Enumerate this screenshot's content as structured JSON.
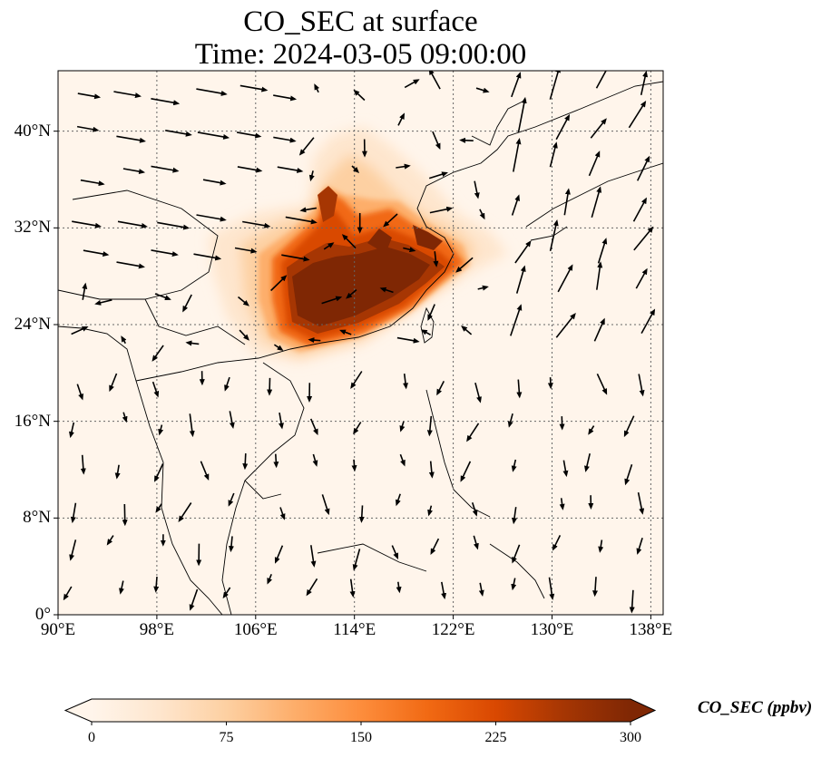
{
  "title_line1": "CO_SEC at surface",
  "title_line2": "Time: 2024-03-05 09:00:00",
  "map": {
    "lon_range": [
      90,
      139
    ],
    "lat_range": [
      0,
      45
    ],
    "lon_ticks": [
      {
        "value": 90,
        "label": "90°E"
      },
      {
        "value": 98,
        "label": "98°E"
      },
      {
        "value": 106,
        "label": "106°E"
      },
      {
        "value": 114,
        "label": "114°E"
      },
      {
        "value": 122,
        "label": "122°E"
      },
      {
        "value": 130,
        "label": "130°E"
      },
      {
        "value": 138,
        "label": "138°E"
      }
    ],
    "lat_ticks": [
      {
        "value": 0,
        "label": "0°"
      },
      {
        "value": 8,
        "label": "8°N"
      },
      {
        "value": 16,
        "label": "16°N"
      },
      {
        "value": 24,
        "label": "24°N"
      },
      {
        "value": 32,
        "label": "32°N"
      },
      {
        "value": 40,
        "label": "40°N"
      }
    ],
    "gridlines": true,
    "background_color": "#fff5eb",
    "wind_vectors": true
  },
  "colorbar": {
    "label": "CO_SEC (ppbv)",
    "range": [
      0,
      300
    ],
    "extend": "both",
    "ticks": [
      {
        "value": 0,
        "label": "0"
      },
      {
        "value": 75,
        "label": "75"
      },
      {
        "value": 150,
        "label": "150"
      },
      {
        "value": 225,
        "label": "225"
      },
      {
        "value": 300,
        "label": "300"
      }
    ],
    "colors": [
      "#fff5eb",
      "#fee6ce",
      "#fdd0a2",
      "#fdae6b",
      "#fd8d3c",
      "#f16913",
      "#d94801",
      "#a63603",
      "#7f2704"
    ]
  }
}
